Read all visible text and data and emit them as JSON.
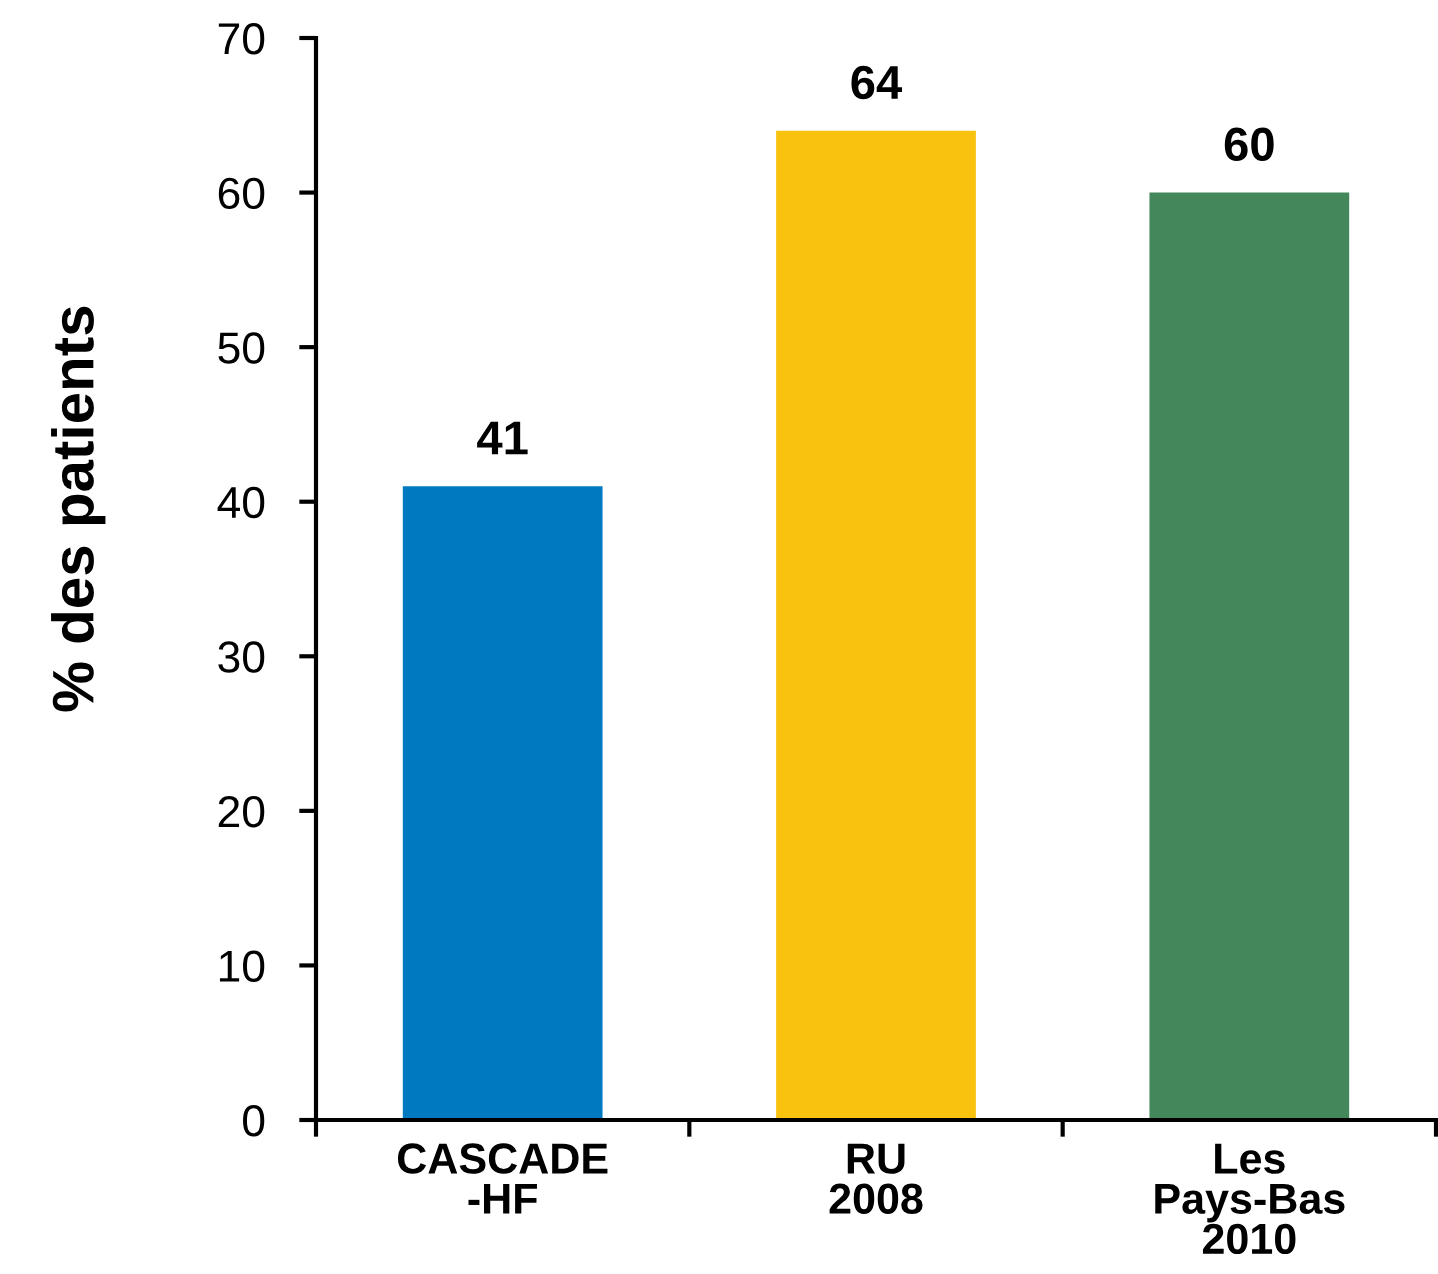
{
  "chart_data": {
    "type": "bar",
    "ylabel": "% des patients",
    "categories": [
      "CASCADE\n-HF",
      "RU\n2008",
      "Les\nPays-Bas\n2010"
    ],
    "values": [
      41,
      64,
      60
    ],
    "colors": [
      "#0079c1",
      "#f9c20e",
      "#43875a"
    ],
    "ylim": [
      0,
      70
    ],
    "yticks": [
      0,
      10,
      20,
      30,
      40,
      50,
      60,
      70
    ],
    "data_labels": true,
    "grid": false,
    "legend": false
  }
}
